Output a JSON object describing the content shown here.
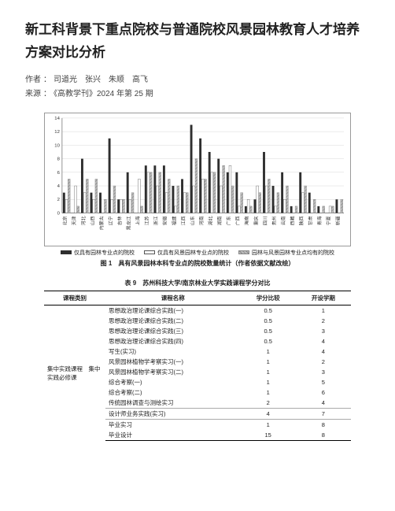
{
  "title": "新工科背景下重点院校与普通院校风景园林教育人才培养方案对比分析",
  "meta": {
    "authors_label": "作者",
    "authors_sep": "：",
    "authors": "司道光　张兴　朱顺　高飞",
    "source_label": "来源",
    "source_sep": "：",
    "source": "《高教学刊》2024 年第 25 期"
  },
  "chart": {
    "type": "bar",
    "background_color": "#ffffff",
    "grid_color": "#d9d9d9",
    "axis_color": "#666666",
    "tick_fontsize": 6,
    "label_fontsize": 6,
    "y": {
      "min": 0,
      "max": 14,
      "step": 2
    },
    "series": [
      {
        "name": "仅具有园林专业点的院校",
        "fill": "#2e2e2e",
        "pattern": "solid"
      },
      {
        "name": "仅具有风景园林专业点的院校",
        "fill": "#ffffff",
        "pattern": "outline"
      },
      {
        "name": "园林与风景园林专业点均有的院校",
        "fill": "#bdbdbd",
        "pattern": "hatch"
      }
    ],
    "categories": [
      "北京",
      "天津",
      "河北",
      "山西",
      "内蒙古",
      "辽宁",
      "吉林",
      "黑龙江",
      "上海",
      "江苏",
      "浙江",
      "安徽",
      "福建",
      "江西",
      "山东",
      "河南",
      "湖北",
      "湖南",
      "广东",
      "广西",
      "海南",
      "重庆",
      "四川",
      "贵州",
      "云南",
      "西藏",
      "陕西",
      "甘肃",
      "青海",
      "宁夏",
      "新疆"
    ],
    "data": [
      [
        3,
        2,
        5
      ],
      [
        0,
        4,
        1
      ],
      [
        8,
        3,
        5
      ],
      [
        3,
        2,
        5
      ],
      [
        3,
        0,
        2
      ],
      [
        11,
        2,
        4
      ],
      [
        2,
        2,
        2
      ],
      [
        6,
        2,
        3
      ],
      [
        0,
        5,
        1
      ],
      [
        7,
        6,
        6
      ],
      [
        7,
        4,
        6
      ],
      [
        7,
        3,
        5
      ],
      [
        4,
        1,
        4
      ],
      [
        5,
        3,
        3
      ],
      [
        13,
        4,
        8
      ],
      [
        11,
        5,
        5
      ],
      [
        9,
        6,
        6
      ],
      [
        8,
        4,
        7
      ],
      [
        6,
        7,
        4
      ],
      [
        6,
        1,
        3
      ],
      [
        1,
        2,
        1
      ],
      [
        2,
        4,
        3
      ],
      [
        9,
        4,
        5
      ],
      [
        4,
        1,
        3
      ],
      [
        6,
        2,
        4
      ],
      [
        1,
        0,
        1
      ],
      [
        6,
        3,
        4
      ],
      [
        3,
        0,
        2
      ],
      [
        1,
        0,
        1
      ],
      [
        0,
        1,
        1
      ],
      [
        2,
        0,
        2
      ]
    ],
    "caption": "图 1　具有风景园林本科专业点的院校数量统计（作者依据文献改绘）"
  },
  "table": {
    "caption": "表 9　苏州科技大学/南京林业大学实践课程学分对比",
    "columns": [
      "课程类别",
      "课程名称",
      "学分比较",
      "开设学期"
    ],
    "col_widths": [
      "20%",
      "44%",
      "18%",
      "18%"
    ],
    "group_label": "集中实践课程　集中实践必修课",
    "rows": [
      [
        "思想政治理论课综合实践(一)",
        "0.5",
        "1"
      ],
      [
        "思想政治理论课综合实践(二)",
        "0.5",
        "2"
      ],
      [
        "思想政治理论课综合实践(三)",
        "0.5",
        "3"
      ],
      [
        "思想政治理论课综合实践(四)",
        "0.5",
        "4"
      ],
      [
        "写生(实习)",
        "1",
        "4"
      ],
      [
        "风景园林植物学考察实习(一)",
        "1",
        "2"
      ],
      [
        "风景园林植物学考察实习(二)",
        "1",
        "3"
      ],
      [
        "综合考察(一)",
        "1",
        "5"
      ],
      [
        "综合考察(二)",
        "1",
        "6"
      ],
      [
        "传统园林调查与测绘实习",
        "2",
        "4"
      ],
      [
        "设计师业务实践(实习)",
        "4",
        "7"
      ],
      [
        "毕业实习",
        "1",
        "8"
      ],
      [
        "毕业设计",
        "15",
        "8"
      ]
    ]
  }
}
